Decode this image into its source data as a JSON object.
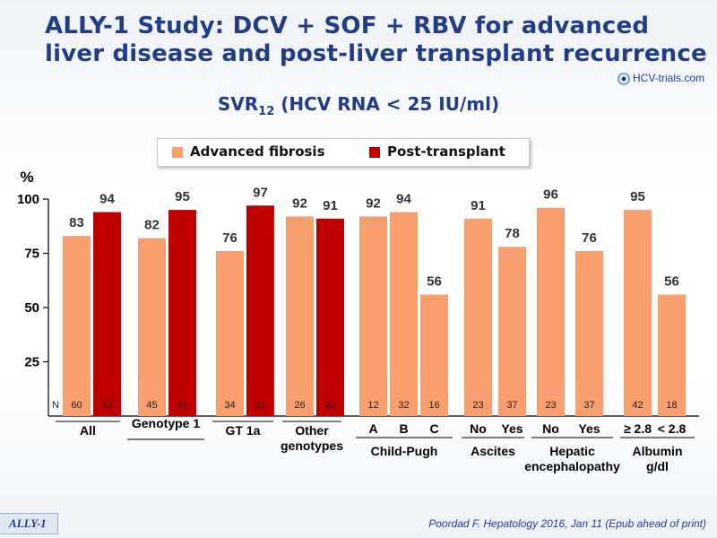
{
  "header": {
    "title": "ALLY-1 Study: DCV + SOF + RBV for advanced liver disease and post-liver transplant recurrence",
    "subtitle_main": "SVR",
    "subtitle_sub": "12",
    "subtitle_rest": " (HCV RNA < 25 IU/ml)",
    "logo_text": "HCV-trials.com"
  },
  "footer": {
    "badge": "ALLY-1",
    "citation": "Poordad F. Hepatology 2016, Jan 11 (Epub ahead of print)"
  },
  "chart_data": {
    "type": "bar",
    "ylabel": "%",
    "ylim": [
      0,
      100
    ],
    "yticks": [
      25,
      50,
      75,
      100
    ],
    "n_label": "N",
    "legend": [
      {
        "name": "Advanced fibrosis",
        "color": "#f79f6e"
      },
      {
        "name": "Post-transplant",
        "color": "#c00000"
      }
    ],
    "groups": [
      {
        "label": [
          "All"
        ],
        "cats": [],
        "bars": [
          {
            "s": 0,
            "v": 83,
            "n": 60
          },
          {
            "s": 1,
            "v": 94,
            "n": 53
          }
        ]
      },
      {
        "label": [
          "Genotype 1"
        ],
        "cats": [],
        "bars": [
          {
            "s": 0,
            "v": 82,
            "n": 45
          },
          {
            "s": 1,
            "v": 95,
            "n": 41
          }
        ]
      },
      {
        "label": [
          "GT 1a"
        ],
        "cats": [],
        "bars": [
          {
            "s": 0,
            "v": 76,
            "n": 34
          },
          {
            "s": 1,
            "v": 97,
            "n": 31
          }
        ]
      },
      {
        "label": [
          "Other",
          "genotypes"
        ],
        "cats": [],
        "bars": [
          {
            "s": 0,
            "v": 92,
            "n": 26
          },
          {
            "s": 1,
            "v": 91,
            "n": 22
          }
        ]
      },
      {
        "label": [
          "Child-Pugh"
        ],
        "cats": [
          "A",
          "B",
          "C"
        ],
        "bars": [
          {
            "s": 0,
            "v": 92,
            "n": 12
          },
          {
            "s": 0,
            "v": 94,
            "n": 32
          },
          {
            "s": 0,
            "v": 56,
            "n": 16
          }
        ]
      },
      {
        "label": [
          "Ascites"
        ],
        "cats": [
          "No",
          "Yes"
        ],
        "bars": [
          {
            "s": 0,
            "v": 91,
            "n": 23
          },
          {
            "s": 0,
            "v": 78,
            "n": 37
          }
        ]
      },
      {
        "label": [
          "Hepatic",
          "encephalopathy"
        ],
        "cats": [
          "No",
          "Yes"
        ],
        "bars": [
          {
            "s": 0,
            "v": 96,
            "n": 23
          },
          {
            "s": 0,
            "v": 76,
            "n": 37
          }
        ]
      },
      {
        "label": [
          "Albumin",
          "g/dl"
        ],
        "cats": [
          "≥ 2.8",
          "< 2.8"
        ],
        "bars": [
          {
            "s": 0,
            "v": 95,
            "n": 42
          },
          {
            "s": 0,
            "v": 56,
            "n": 18
          }
        ]
      }
    ]
  }
}
